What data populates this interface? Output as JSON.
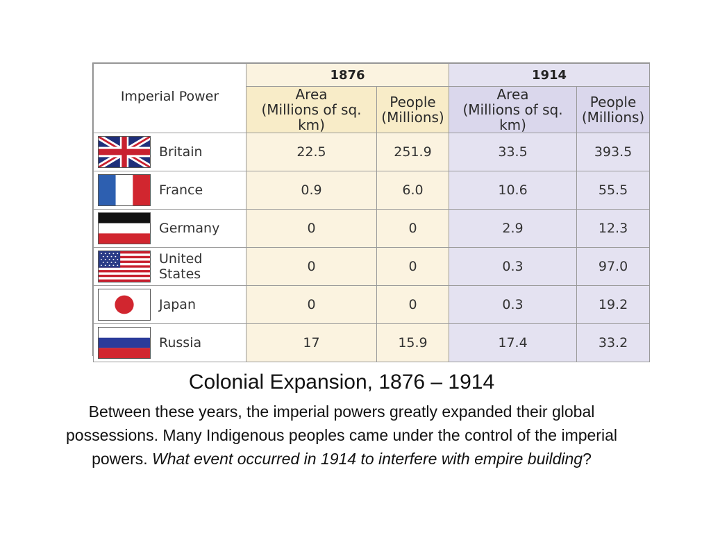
{
  "table": {
    "corner_header": "Imperial Power",
    "years": [
      "1876",
      "1914"
    ],
    "columns": [
      {
        "title": "Area",
        "unit": "(Millions of sq. km)"
      },
      {
        "title": "People",
        "unit": "(Millions)"
      },
      {
        "title": "Area",
        "unit": "(Millions of sq. km)"
      },
      {
        "title": "People",
        "unit": "(Millions)"
      }
    ],
    "rows": [
      {
        "flag": "britain-flag-icon",
        "country": "Britain",
        "values": [
          "22.5",
          "251.9",
          "33.5",
          "393.5"
        ]
      },
      {
        "flag": "france-flag-icon",
        "country": "France",
        "values": [
          "0.9",
          "6.0",
          "10.6",
          "55.5"
        ]
      },
      {
        "flag": "germany-flag-icon",
        "country": "Germany",
        "values": [
          "0",
          "0",
          "2.9",
          "12.3"
        ]
      },
      {
        "flag": "united-states-flag-icon",
        "country": "United States",
        "values": [
          "0",
          "0",
          "0.3",
          "97.0"
        ]
      },
      {
        "flag": "japan-flag-icon",
        "country": "Japan",
        "values": [
          "0",
          "0",
          "0.3",
          "19.2"
        ]
      },
      {
        "flag": "russia-flag-icon",
        "country": "Russia",
        "values": [
          "17",
          "15.9",
          "17.4",
          "33.2"
        ]
      }
    ]
  },
  "caption": {
    "title": "Colonial Expansion, 1876 – 1914",
    "body": "Between these years, the imperial powers greatly expanded their global possessions.  Many Indigenous peoples came under the control of the imperial powers.  ",
    "question": "What event occurred in 1914 to interfere with empire building",
    "question_end": "?"
  },
  "colors": {
    "col_1876": "#fbf3e0",
    "col_1914": "#e4e2f1"
  }
}
